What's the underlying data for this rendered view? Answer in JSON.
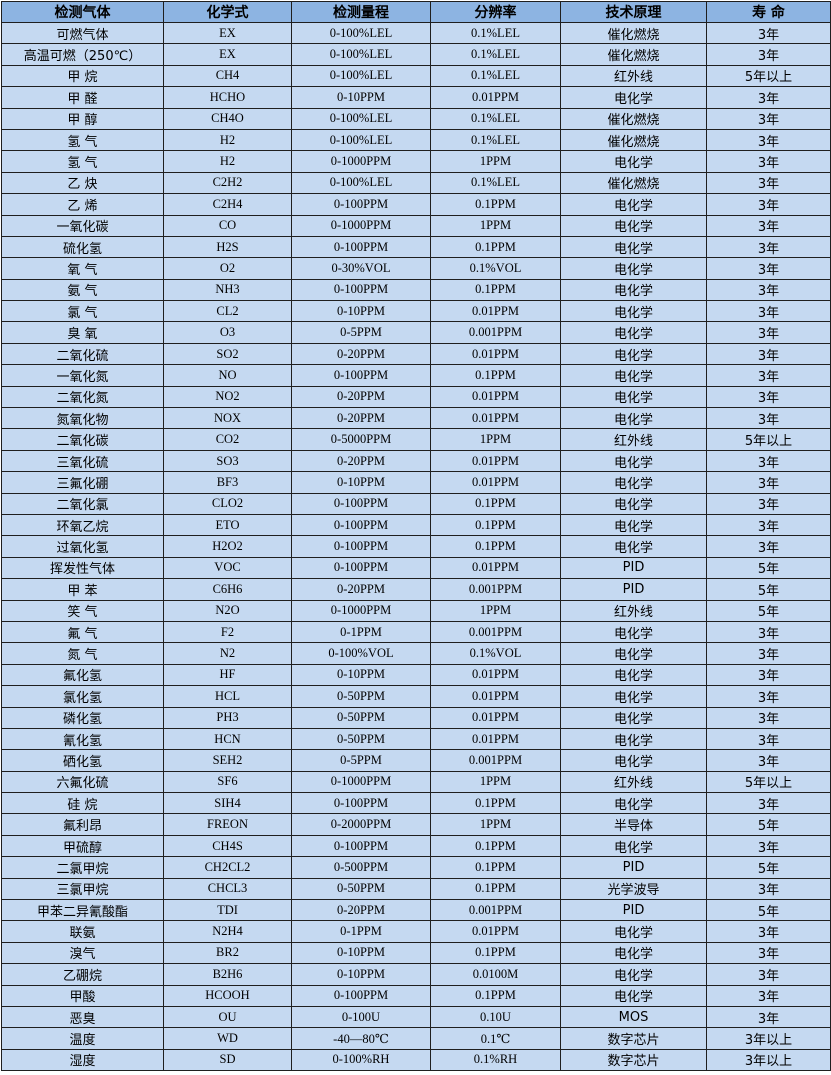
{
  "header": [
    "检测气体",
    "化学式",
    "检测量程",
    "分辨率",
    "技术原理",
    "寿 命"
  ],
  "rows": [
    [
      "可燃气体",
      "EX",
      "0-100%LEL",
      "0.1%LEL",
      "催化燃烧",
      "3年"
    ],
    [
      "高温可燃（250℃）",
      "EX",
      "0-100%LEL",
      "0.1%LEL",
      "催化燃烧",
      "3年"
    ],
    [
      "甲 烷",
      "CH4",
      "0-100%LEL",
      "0.1%LEL",
      "红外线",
      "5年以上"
    ],
    [
      "甲 醛",
      "HCHO",
      "0-10PPM",
      "0.01PPM",
      "电化学",
      "3年"
    ],
    [
      "甲 醇",
      "CH4O",
      "0-100%LEL",
      "0.1%LEL",
      "催化燃烧",
      "3年"
    ],
    [
      "氢 气",
      "H2",
      "0-100%LEL",
      "0.1%LEL",
      "催化燃烧",
      "3年"
    ],
    [
      "氢 气",
      "H2",
      "0-1000PPM",
      "1PPM",
      "电化学",
      "3年"
    ],
    [
      "乙 炔",
      "C2H2",
      "0-100%LEL",
      "0.1%LEL",
      "催化燃烧",
      "3年"
    ],
    [
      "乙 烯",
      "C2H4",
      "0-100PPM",
      "0.1PPM",
      "电化学",
      "3年"
    ],
    [
      "一氧化碳",
      "CO",
      "0-1000PPM",
      "1PPM",
      "电化学",
      "3年"
    ],
    [
      "硫化氢",
      "H2S",
      "0-100PPM",
      "0.1PPM",
      "电化学",
      "3年"
    ],
    [
      "氧 气",
      "O2",
      "0-30%VOL",
      "0.1%VOL",
      "电化学",
      "3年"
    ],
    [
      "氨 气",
      "NH3",
      "0-100PPM",
      "0.1PPM",
      "电化学",
      "3年"
    ],
    [
      "氯 气",
      "CL2",
      "0-10PPM",
      "0.01PPM",
      "电化学",
      "3年"
    ],
    [
      "臭 氧",
      "O3",
      "0-5PPM",
      "0.001PPM",
      "电化学",
      "3年"
    ],
    [
      "二氧化硫",
      "SO2",
      "0-20PPM",
      "0.01PPM",
      "电化学",
      "3年"
    ],
    [
      "一氧化氮",
      "NO",
      "0-100PPM",
      "0.1PPM",
      "电化学",
      "3年"
    ],
    [
      "二氧化氮",
      "NO2",
      "0-20PPM",
      "0.01PPM",
      "电化学",
      "3年"
    ],
    [
      "氮氧化物",
      "NOX",
      "0-20PPM",
      "0.01PPM",
      "电化学",
      "3年"
    ],
    [
      "二氧化碳",
      "CO2",
      "0-5000PPM",
      "1PPM",
      "红外线",
      "5年以上"
    ],
    [
      "三氧化硫",
      "SO3",
      "0-20PPM",
      "0.01PPM",
      "电化学",
      "3年"
    ],
    [
      "三氟化硼",
      "BF3",
      "0-10PPM",
      "0.01PPM",
      "电化学",
      "3年"
    ],
    [
      "二氧化氯",
      "CLO2",
      "0-100PPM",
      "0.1PPM",
      "电化学",
      "3年"
    ],
    [
      "环氧乙烷",
      "ETO",
      "0-100PPM",
      "0.1PPM",
      "电化学",
      "3年"
    ],
    [
      "过氧化氢",
      "H2O2",
      "0-100PPM",
      "0.1PPM",
      "电化学",
      "3年"
    ],
    [
      "挥发性气体",
      "VOC",
      "0-100PPM",
      "0.01PPM",
      "PID",
      "5年"
    ],
    [
      "甲 苯",
      "C6H6",
      "0-20PPM",
      "0.001PPM",
      "PID",
      "5年"
    ],
    [
      "笑 气",
      "N2O",
      "0-1000PPM",
      "1PPM",
      "红外线",
      "5年"
    ],
    [
      "氟 气",
      "F2",
      "0-1PPM",
      "0.001PPM",
      "电化学",
      "3年"
    ],
    [
      "氮 气",
      "N2",
      "0-100%VOL",
      "0.1%VOL",
      "电化学",
      "3年"
    ],
    [
      "氟化氢",
      "HF",
      "0-10PPM",
      "0.01PPM",
      "电化学",
      "3年"
    ],
    [
      "氯化氢",
      "HCL",
      "0-50PPM",
      "0.01PPM",
      "电化学",
      "3年"
    ],
    [
      "磷化氢",
      "PH3",
      "0-50PPM",
      "0.01PPM",
      "电化学",
      "3年"
    ],
    [
      "氰化氢",
      "HCN",
      "0-50PPM",
      "0.01PPM",
      "电化学",
      "3年"
    ],
    [
      "硒化氢",
      "SEH2",
      "0-5PPM",
      "0.001PPM",
      "电化学",
      "3年"
    ],
    [
      "六氟化硫",
      "SF6",
      "0-1000PPM",
      "1PPM",
      "红外线",
      "5年以上"
    ],
    [
      "硅 烷",
      "SIH4",
      "0-100PPM",
      "0.1PPM",
      "电化学",
      "3年"
    ],
    [
      "氟利昂",
      "FREON",
      "0-2000PPM",
      "1PPM",
      "半导体",
      "5年"
    ],
    [
      "甲硫醇",
      "CH4S",
      "0-100PPM",
      "0.1PPM",
      "电化学",
      "3年"
    ],
    [
      "二氯甲烷",
      "CH2CL2",
      "0-500PPM",
      "0.1PPM",
      "PID",
      "5年"
    ],
    [
      "三氯甲烷",
      "CHCL3",
      "0-50PPM",
      "0.1PPM",
      "光学波导",
      "3年"
    ],
    [
      "甲苯二异氰酸酯",
      "TDI",
      "0-20PPM",
      "0.001PPM",
      "PID",
      "5年"
    ],
    [
      "联氨",
      "N2H4",
      "0-1PPM",
      "0.01PPM",
      "电化学",
      "3年"
    ],
    [
      "溴气",
      "BR2",
      "0-10PPM",
      "0.1PPM",
      "电化学",
      "3年"
    ],
    [
      "乙硼烷",
      "B2H6",
      "0-10PPM",
      "0.0100M",
      "电化学",
      "3年"
    ],
    [
      "甲酸",
      "HCOOH",
      "0-100PPM",
      "0.1PPM",
      "电化学",
      "3年"
    ],
    [
      "恶臭",
      "OU",
      "0-100U",
      "0.10U",
      "MOS",
      "3年"
    ],
    [
      "温度",
      "WD",
      "-40—80℃",
      "0.1℃",
      "数字芯片",
      "3年以上"
    ],
    [
      "湿度",
      "SD",
      "0-100%RH",
      "0.1%RH",
      "数字芯片",
      "3年以上"
    ]
  ],
  "colors": {
    "header_bg": "#8db4e2",
    "row_bg": "#c5d9f1",
    "border": "#1f1f1f"
  }
}
